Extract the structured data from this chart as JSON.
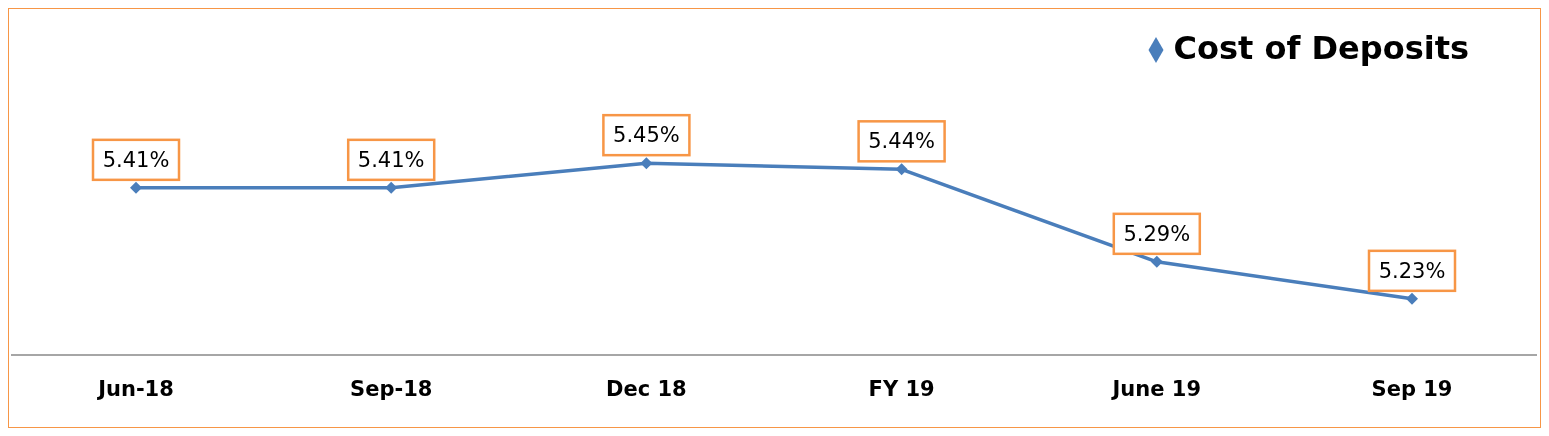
{
  "chart_data": {
    "type": "line",
    "categories": [
      "Jun-18",
      "Sep-18",
      "Dec 18",
      "FY 19",
      "June 19",
      "Sep 19"
    ],
    "series": [
      {
        "name": "Cost of Deposits",
        "color": "#4a7ebb",
        "values": [
          5.41,
          5.41,
          5.45,
          5.44,
          5.29,
          5.23
        ],
        "value_labels": [
          "5.41%",
          "5.41%",
          "5.45%",
          "5.44%",
          "5.29%",
          "5.23%"
        ]
      }
    ],
    "legend": "top right",
    "marker": "diamond",
    "line_style": "solid",
    "grid": false
  }
}
